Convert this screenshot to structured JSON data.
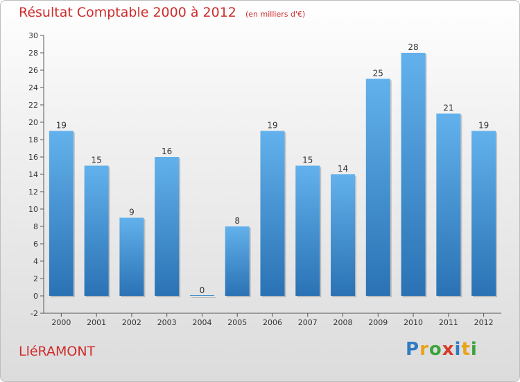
{
  "header": {
    "title": "Résultat Comptable 2000 à 2012",
    "unit": "(en milliers d'€)"
  },
  "footer": {
    "commune": "LléRAMONT",
    "logo": [
      "P",
      "r",
      "o",
      "x",
      "i",
      "t",
      "i"
    ],
    "logo_colors": [
      "#2e7bc4",
      "#e8a21c",
      "#3da33d",
      "#d63a2c",
      "#2e7bc4",
      "#e8a21c",
      "#3da33d"
    ]
  },
  "colors": {
    "bar": "#3d95d8",
    "bar_light": "#62b1ec",
    "bar_dark": "#2a72b4",
    "title": "#d02b2b"
  },
  "chart_data": {
    "type": "bar",
    "categories": [
      "2000",
      "2001",
      "2002",
      "2003",
      "2004",
      "2005",
      "2006",
      "2007",
      "2008",
      "2009",
      "2010",
      "2011",
      "2012"
    ],
    "values": [
      19,
      15,
      9,
      16,
      0,
      8,
      19,
      15,
      14,
      25,
      28,
      21,
      19
    ],
    "ylim": [
      -2,
      30
    ],
    "yticks": [
      -2,
      0,
      2,
      4,
      6,
      8,
      10,
      12,
      14,
      16,
      18,
      20,
      22,
      24,
      26,
      28,
      30
    ],
    "grid": false,
    "xlabel": "",
    "ylabel": ""
  }
}
